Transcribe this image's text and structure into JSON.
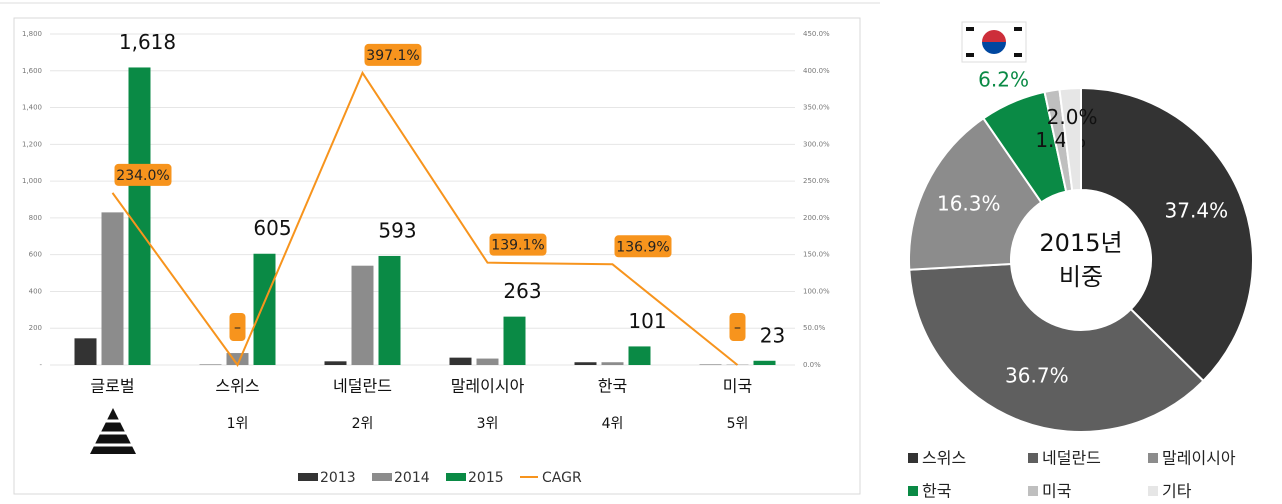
{
  "chart_data": [
    {
      "type": "bar",
      "categories": [
        "글로벌",
        "스위스",
        "네덜란드",
        "말레이시아",
        "한국",
        "미국"
      ],
      "rank_labels": [
        null,
        "1위",
        "2위",
        "3위",
        "4위",
        "5위"
      ],
      "series": [
        {
          "name": "2013",
          "color": "#333333",
          "values": [
            145,
            2,
            20,
            40,
            15,
            2
          ]
        },
        {
          "name": "2014",
          "color": "#8c8c8c",
          "values": [
            830,
            65,
            540,
            35,
            15,
            2
          ]
        },
        {
          "name": "2015",
          "color": "#0a8a45",
          "values": [
            1618,
            605,
            593,
            263,
            101,
            23
          ],
          "value_labels": [
            "1,618",
            "605",
            "593",
            "263",
            "101",
            "23"
          ]
        },
        {
          "name": "CAGR",
          "type": "line",
          "axis": "y2",
          "color": "#f7941d",
          "values": [
            234.0,
            0,
            397.1,
            139.1,
            136.9,
            0
          ],
          "value_labels": [
            "234.0%",
            "–",
            "397.1%",
            "139.1%",
            "136.9%",
            "–"
          ]
        }
      ],
      "ylim": [
        0,
        1800
      ],
      "yticks": [
        {
          "value": 0,
          "label": "-"
        },
        200,
        400,
        600,
        800,
        {
          "value": 1000,
          "label": "1,000"
        },
        {
          "value": 1200,
          "label": "1,200"
        },
        {
          "value": 1400,
          "label": "1,400"
        },
        {
          "value": 1600,
          "label": "1,600"
        },
        {
          "value": 1800,
          "label": "1,800"
        }
      ],
      "y2lim": [
        0,
        450
      ],
      "y2ticks": [
        {
          "value": 0,
          "label": "0.0%"
        },
        {
          "value": 50,
          "label": "50.0%"
        },
        {
          "value": 100,
          "label": "100.0%"
        },
        {
          "value": 150,
          "label": "150.0%"
        },
        {
          "value": 200,
          "label": "200.0%"
        },
        {
          "value": 250,
          "label": "250.0%"
        },
        {
          "value": 300,
          "label": "300.0%"
        },
        {
          "value": 350,
          "label": "350.0%"
        },
        {
          "value": 400,
          "label": "400.0%"
        },
        {
          "value": 450,
          "label": "450.0%"
        }
      ],
      "grid": true,
      "legend": "bottom"
    },
    {
      "type": "pie",
      "donut": true,
      "center_text": [
        "2015년",
        "비중"
      ],
      "categories": [
        "스위스",
        "네덜란드",
        "말레이시아",
        "한국",
        "미국",
        "기타"
      ],
      "values": [
        37.4,
        36.7,
        16.3,
        6.2,
        1.4,
        2.0
      ],
      "value_labels": [
        "37.4%",
        "36.7%",
        "16.3%",
        "6.2%",
        "1.4%",
        "2.0%"
      ],
      "colors": [
        "#333333",
        "#5f5f5f",
        "#8c8c8c",
        "#0a8a45",
        "#bfbfbf",
        "#e6e6e6"
      ],
      "legend": "bottom"
    }
  ]
}
